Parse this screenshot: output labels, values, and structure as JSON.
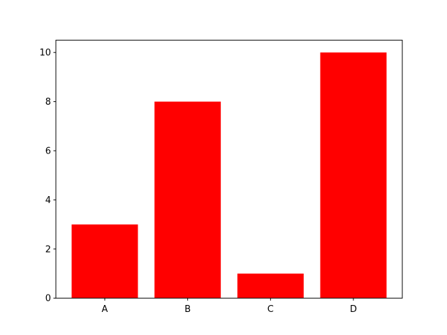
{
  "chart_data": {
    "type": "bar",
    "title": "",
    "xlabel": "",
    "ylabel": "",
    "categories": [
      "A",
      "B",
      "C",
      "D"
    ],
    "values": [
      3,
      8,
      1,
      10
    ],
    "bar_color": "#ff0000",
    "ylim": [
      0,
      10.5
    ],
    "yticks": [
      0,
      2,
      4,
      6,
      8,
      10
    ],
    "grid": false
  }
}
